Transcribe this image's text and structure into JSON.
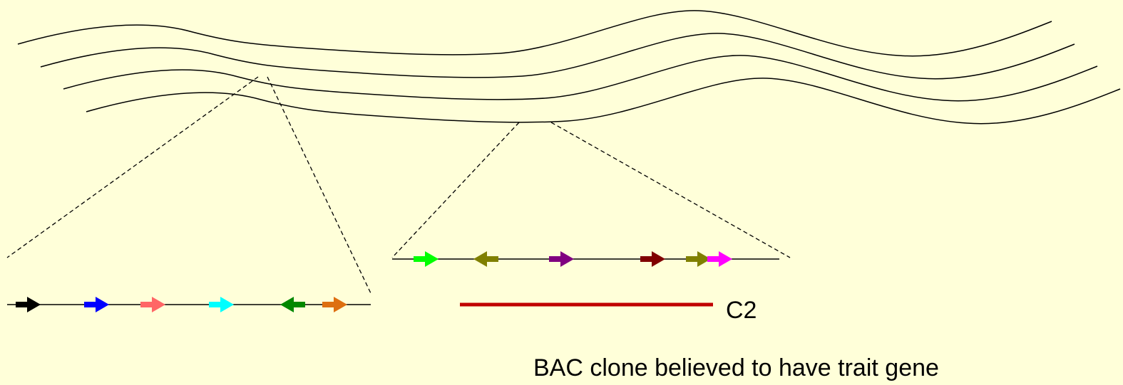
{
  "labels": {
    "clone": "C2",
    "caption": "BAC clone believed to have trait gene"
  }
}
